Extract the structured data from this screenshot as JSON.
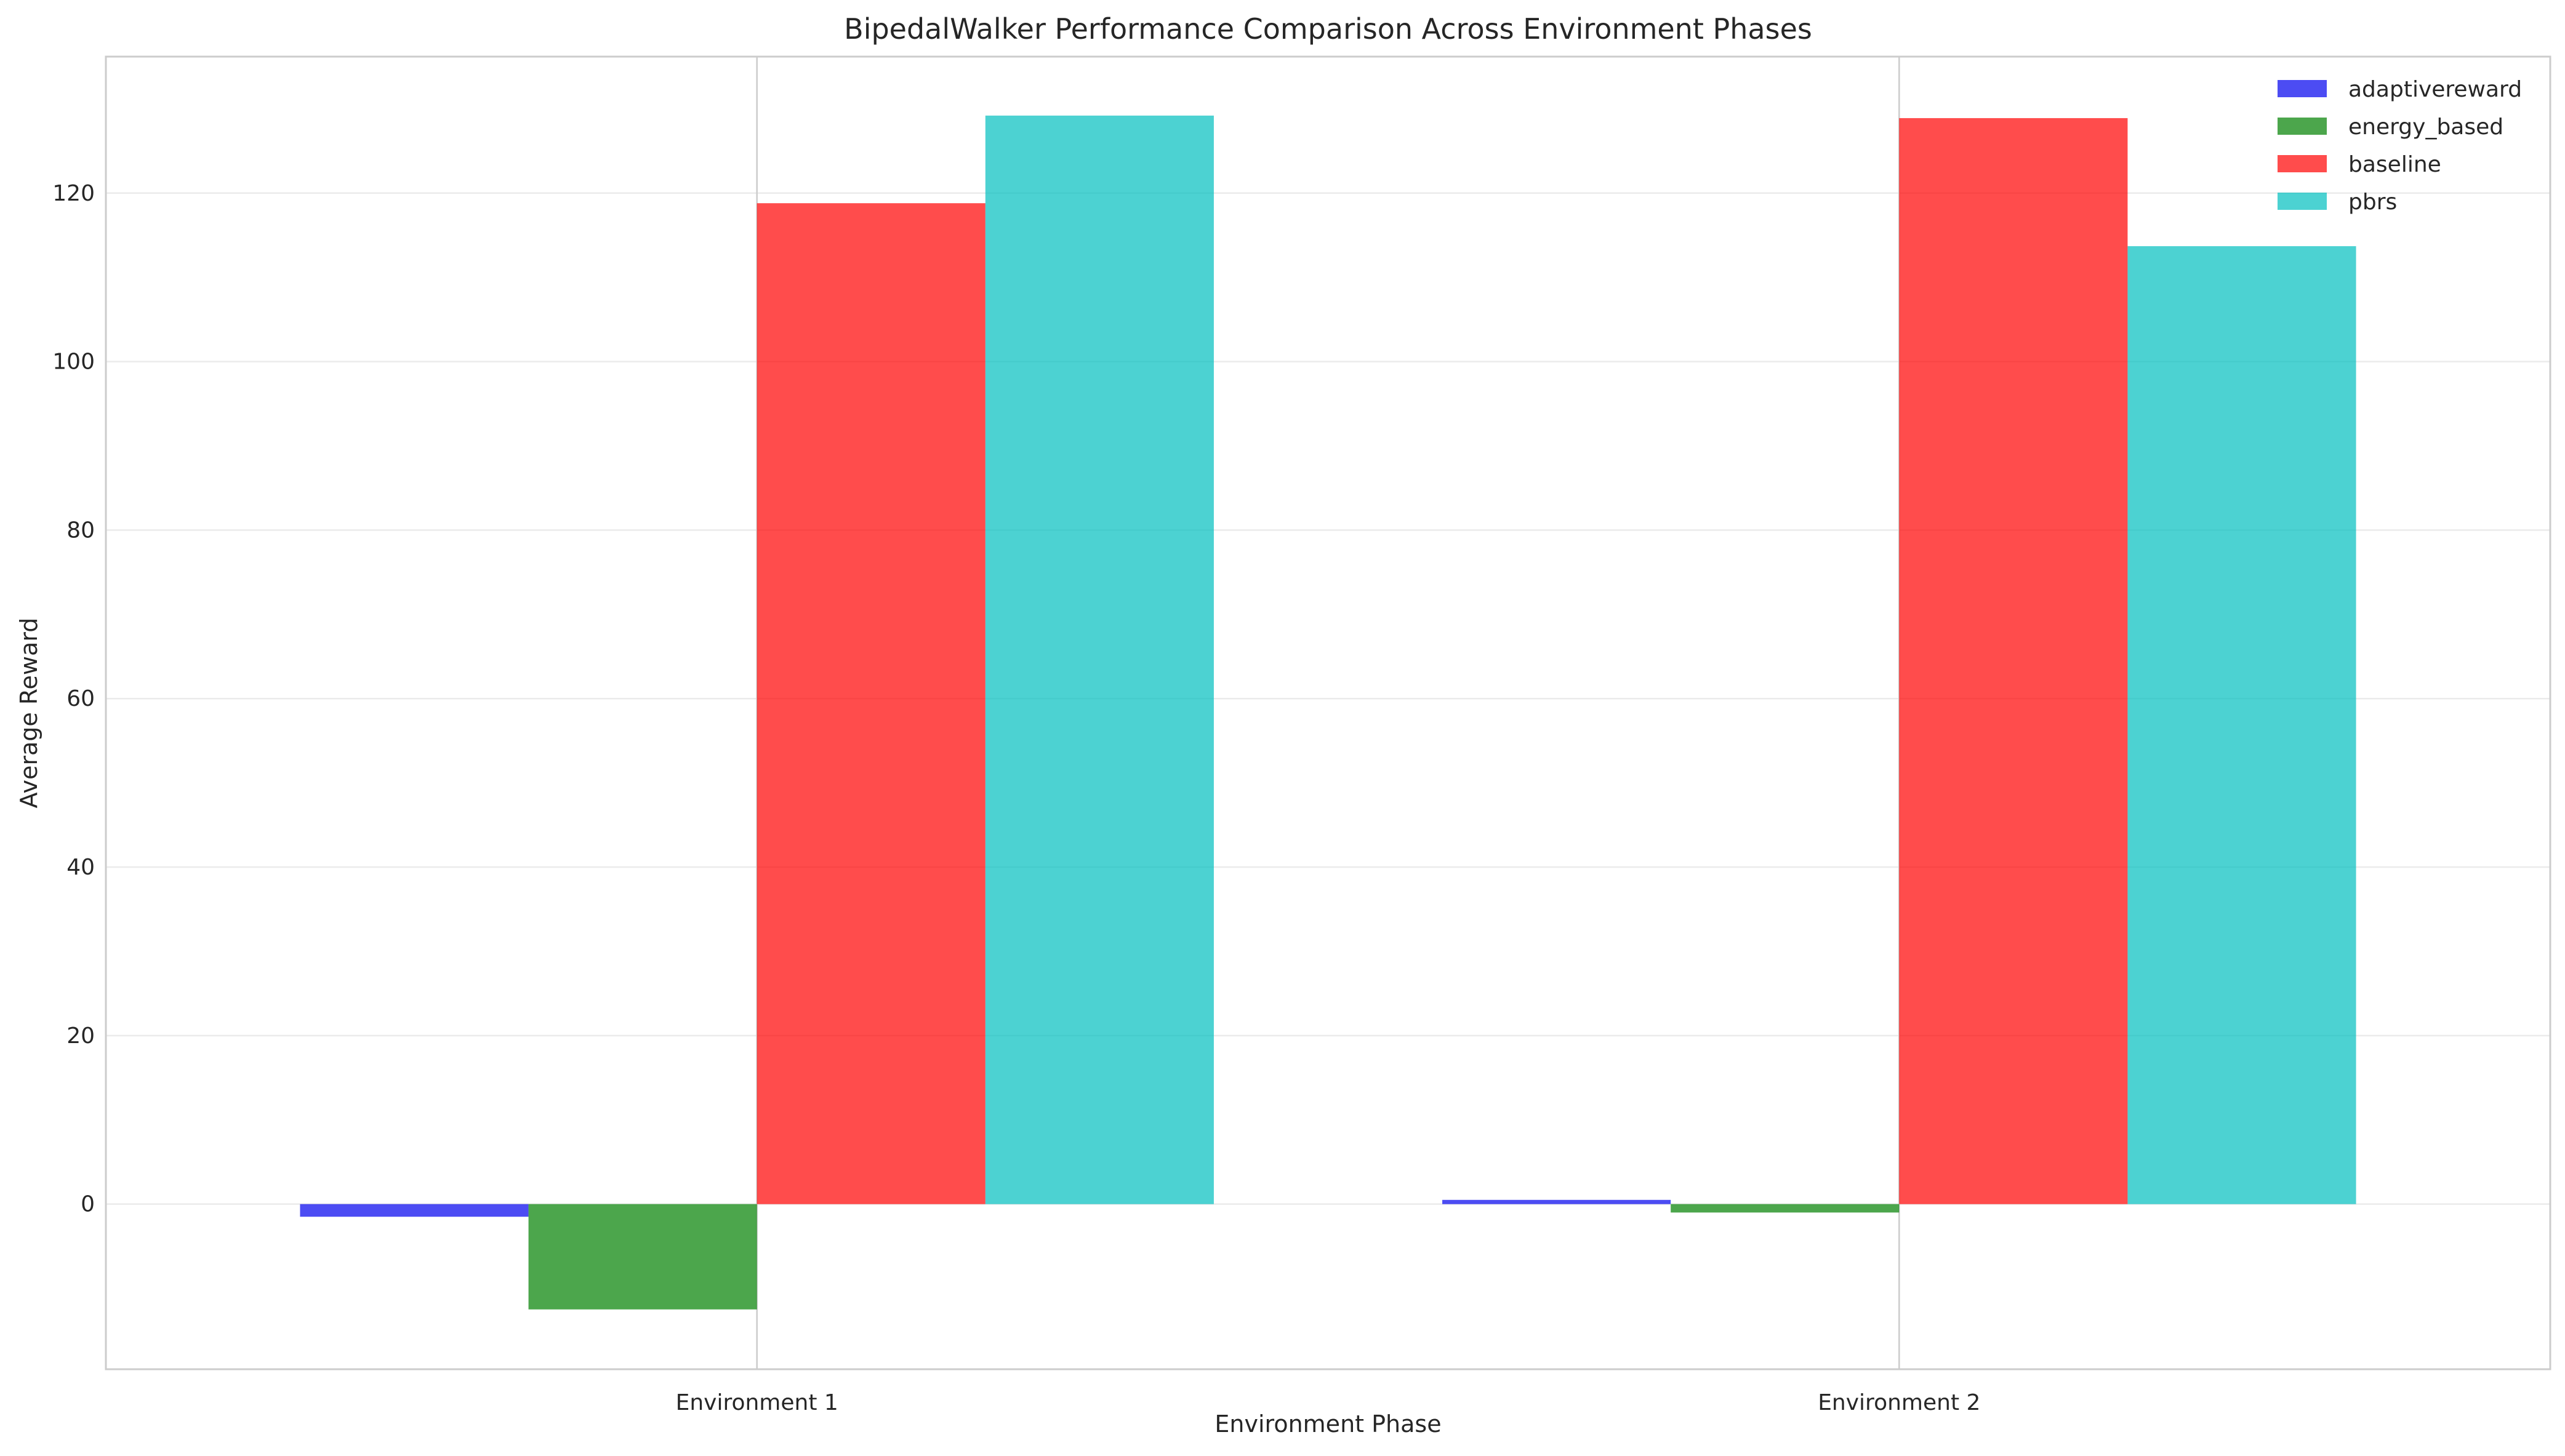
{
  "chart_data": {
    "type": "bar",
    "title": "BipedalWalker Performance Comparison Across Environment Phases",
    "xlabel": "Environment Phase",
    "ylabel": "Average Reward",
    "categories": [
      "Environment 1",
      "Environment 2"
    ],
    "series": [
      {
        "name": "adaptivereward",
        "color": "#0000ee",
        "values": [
          -1.5,
          0.5
        ]
      },
      {
        "name": "energy_based",
        "color": "#008000",
        "values": [
          -12.5,
          -1.0
        ]
      },
      {
        "name": "baseline",
        "color": "#ff0000",
        "values": [
          118.8,
          128.9
        ]
      },
      {
        "name": "pbrs",
        "color": "#00bfbf",
        "values": [
          129.2,
          113.7
        ]
      }
    ],
    "ylim": [
      -19.6,
      136.2
    ],
    "yticks": [
      0,
      20,
      40,
      60,
      80,
      100,
      120
    ],
    "grid": true,
    "legend_position": "top-right",
    "bar_opacity": 0.7
  }
}
